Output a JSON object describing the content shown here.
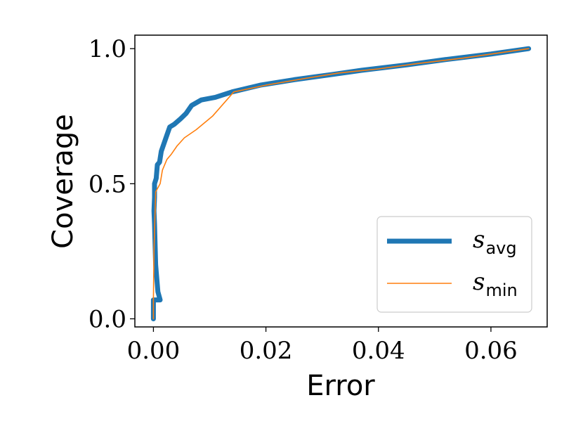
{
  "chart_data": {
    "type": "line",
    "title": "",
    "xlabel": "Error",
    "ylabel": "Coverage",
    "xlim": [
      -0.0033,
      0.07
    ],
    "ylim": [
      -0.03,
      1.05
    ],
    "x_ticks": [
      0.0,
      0.02,
      0.04,
      0.06
    ],
    "x_tick_labels": [
      "0.00",
      "0.02",
      "0.04",
      "0.06"
    ],
    "y_ticks": [
      0.0,
      0.5,
      1.0
    ],
    "y_tick_labels": [
      "0.0",
      "0.5",
      "1.0"
    ],
    "grid": false,
    "legend_position": "lower-right",
    "series": [
      {
        "name": "s",
        "name_subscript": "avg",
        "color": "#1f77b4",
        "line_width": "thick",
        "points": [
          [
            0.0,
            0.0
          ],
          [
            0.0,
            0.07
          ],
          [
            0.0012,
            0.07
          ],
          [
            0.0008,
            0.1
          ],
          [
            0.0004,
            0.2
          ],
          [
            0.0002,
            0.35
          ],
          [
            0.0001,
            0.4
          ],
          [
            0.0002,
            0.45
          ],
          [
            0.0002,
            0.5
          ],
          [
            0.0005,
            0.52
          ],
          [
            0.0007,
            0.57
          ],
          [
            0.0011,
            0.58
          ],
          [
            0.0014,
            0.62
          ],
          [
            0.0019,
            0.65
          ],
          [
            0.0024,
            0.68
          ],
          [
            0.0029,
            0.71
          ],
          [
            0.0037,
            0.72
          ],
          [
            0.0048,
            0.74
          ],
          [
            0.0058,
            0.76
          ],
          [
            0.0068,
            0.79
          ],
          [
            0.0085,
            0.81
          ],
          [
            0.011,
            0.82
          ],
          [
            0.014,
            0.84
          ],
          [
            0.019,
            0.865
          ],
          [
            0.025,
            0.885
          ],
          [
            0.032,
            0.905
          ],
          [
            0.037,
            0.92
          ],
          [
            0.045,
            0.94
          ],
          [
            0.052,
            0.96
          ],
          [
            0.06,
            0.98
          ],
          [
            0.0667,
            1.0
          ]
        ]
      },
      {
        "name": "s",
        "name_subscript": "min",
        "color": "#ff7f0e",
        "line_width": "thin",
        "points": [
          [
            0.0,
            0.0
          ],
          [
            0.0,
            0.07
          ],
          [
            0.0001,
            0.25
          ],
          [
            0.0004,
            0.47
          ],
          [
            0.0012,
            0.5
          ],
          [
            0.0016,
            0.55
          ],
          [
            0.0024,
            0.59
          ],
          [
            0.0032,
            0.61
          ],
          [
            0.0042,
            0.64
          ],
          [
            0.0055,
            0.67
          ],
          [
            0.0076,
            0.7
          ],
          [
            0.0105,
            0.75
          ],
          [
            0.0143,
            0.84
          ],
          [
            0.02,
            0.865
          ],
          [
            0.027,
            0.89
          ],
          [
            0.033,
            0.91
          ],
          [
            0.04,
            0.925
          ],
          [
            0.047,
            0.945
          ],
          [
            0.055,
            0.965
          ],
          [
            0.0667,
            1.0
          ]
        ]
      }
    ]
  }
}
